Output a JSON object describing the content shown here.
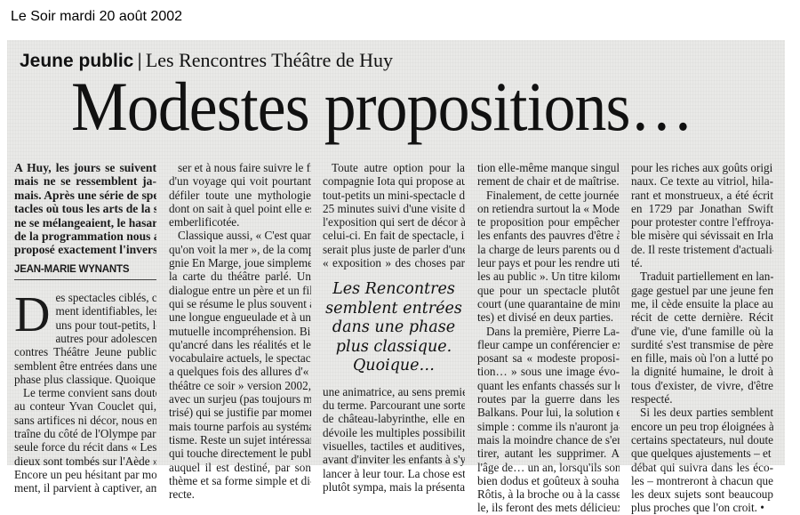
{
  "caption": "Le Soir mardi 20 août 2002",
  "kicker": {
    "section": "Jeune public",
    "separator": "|",
    "subtitle": "Les Rencontres Théâtre de Huy"
  },
  "title": "Modestes propositions…",
  "lede": [
    "A Huy, les jours se suivent",
    "mais ne se ressemblent ja-",
    "mais. Après une série de spec-",
    "tacles où tous les arts de la scè-",
    "ne se mélangeaient, le hasard",
    "de la programmation nous a",
    "proposé exactement l'inverse."
  ],
  "byline": "JEAN-MARIE WYNANTS",
  "dropcap": "D",
  "pullquote": [
    "Les Rencontres",
    "semblent entrées",
    "dans une phase",
    "plus classique.",
    "Quoique…"
  ],
  "columns": [
    {
      "paragraphs": [
        {
          "lines": [
            "es spectacles ciblés, claire-",
            "ment identifiables, les",
            "uns pour tout-petits, les",
            "autres pour adolescents. Les Ren-",
            "contres Théâtre Jeune public",
            "semblent être entrées dans une",
            "phase plus classique. Quoique…"
          ]
        },
        {
          "lines": [
            "Le terme convient sans doute",
            "au conteur Yvan Couclet qui,",
            "sans artifices ni décor, nous en-",
            "traîne du côté de l'Olympe par la",
            "seule force du récit dans « Les",
            "dieux sont tombés sur l'Aède ».",
            "Encore un peu hésitant par mo-",
            "ment, il parvient à captiver, amu-"
          ]
        }
      ]
    },
    {
      "paragraphs": [
        {
          "lines": [
            "ser et à nous faire suivre le fil",
            "d'un voyage qui voit pourtant",
            "défiler toute une mythologie",
            "dont on sait à quel point elle est",
            "emberlificotée."
          ]
        },
        {
          "lines": [
            "Classique aussi, « C'est quand",
            "qu'on voit la mer », de la compa-",
            "gnie En Marge, joue simplement",
            "la carte du théâtre parlé. Un",
            "dialogue entre un père et un fils",
            "qui se résume le plus souvent à",
            "une longue engueulade et à une",
            "mutuelle incompréhension. Bien",
            "qu'ancré dans les réalités et le",
            "vocabulaire actuels, le spectacle",
            "a quelques fois des allures d'« Au",
            "théâtre ce soir » version 2002,",
            "avec un surjeu (pas toujours maî-",
            "trisé) qui se justifie par moment,",
            "mais tourne parfois au systéma-",
            "tisme. Reste un sujet intéressant",
            "qui touche directement le public",
            "auquel il est destiné, par son",
            "thème et sa forme simple et di-",
            "recte."
          ]
        }
      ]
    },
    {
      "paragraphs": [
        {
          "lines": [
            "Toute autre option pour la",
            "compagnie Iota qui propose aux",
            "tout-petits un mini-spectacle de",
            "25 minutes suivi d'une visite de",
            "l'exposition qui sert de décor à",
            "celui-ci. En fait de spectacle, il",
            "serait plus juste de parler d'une",
            "« exposition » des choses par"
          ]
        },
        {
          "lines": [
            "une animatrice, au sens premier",
            "du terme. Parcourant une sorte",
            "de château-labyrinthe, elle en",
            "dévoile les multiples possibilités",
            "visuelles, tactiles et auditives,",
            "avant d'inviter les enfants à s'y",
            "lancer à leur tour. La chose est",
            "plutôt sympa, mais la présenta-"
          ],
          "continuation": true
        }
      ]
    },
    {
      "paragraphs": [
        {
          "lines": [
            "tion elle-même manque singuliè-",
            "rement de chair et de maîtrise."
          ],
          "continuation": true
        },
        {
          "lines": [
            "Finalement, de cette journée,",
            "on retiendra surtout la « Modes-",
            "te proposition pour empêcher",
            "les enfants des pauvres d'être à",
            "la charge de leurs parents ou de",
            "leur pays et pour les rendre uti-",
            "les au public ». Un titre kilométri-",
            "que pour un spectacle plutôt",
            "court (une quarantaine de minu-",
            "tes) et divisé en deux parties."
          ]
        },
        {
          "lines": [
            "Dans la première, Pierre La-",
            "fleur campe un conférencier ex-",
            "posant sa « modeste proposi-",
            "tion… » sous une image évo-",
            "quant les enfants chassés sur les",
            "routes par la guerre dans les",
            "Balkans. Pour lui, la solution est",
            "simple : comme ils n'auront ja-",
            "mais la moindre chance de s'en",
            "tirer, autant les supprimer. A",
            "l'âge de… un an, lorsqu'ils sont",
            "bien dodus et goûteux à souhait.",
            "Rôtis, à la broche ou à la cassero-",
            "le, ils feront des mets délicieux"
          ]
        }
      ]
    },
    {
      "paragraphs": [
        {
          "lines": [
            "pour les riches aux goûts origi-",
            "naux. Ce texte au vitriol, hila-",
            "rant et monstrueux, a été écrit",
            "en 1729 par Jonathan Swift",
            "pour protester contre l'effroya-",
            "ble misère qui sévissait en Irlan-",
            "de. Il reste tristement d'actuali-",
            "té."
          ],
          "continuation": true
        },
        {
          "lines": [
            "Traduit partiellement en lan-",
            "gage gestuel par une jeune fem-",
            "me, il cède ensuite la place au",
            "récit de cette dernière. Récit",
            "d'une vie, d'une famille où la",
            "surdité s'est transmise de père",
            "en fille, mais où l'on a lutté pour",
            "la dignité humaine, le droit à",
            "tous d'exister, de vivre, d'être",
            "respecté."
          ]
        },
        {
          "lines": [
            "Si les deux parties semblent",
            "encore un peu trop éloignées à",
            "certains spectateurs, nul doute",
            "que quelques ajustements – et le",
            "débat qui suivra dans les éco-",
            "les – montreront à chacun que",
            "les deux sujets sont beaucoup",
            "plus proches que l'on croit. •"
          ]
        }
      ]
    }
  ]
}
